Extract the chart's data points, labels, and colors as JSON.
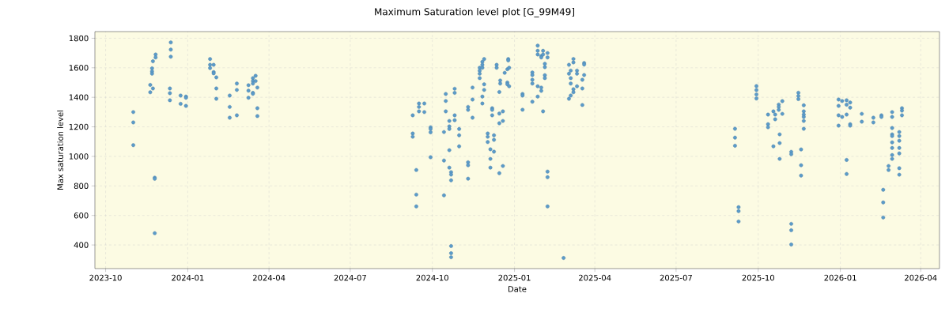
{
  "chart_data": {
    "type": "scatter",
    "title": "Maximum Saturation level plot [G_99M49]",
    "xlabel": "Date",
    "ylabel": "Max saturation level",
    "x": [
      "2023-11-01",
      "2023-11-01",
      "2023-11-01",
      "2023-11-20",
      "2023-11-20",
      "2023-11-22",
      "2023-11-22",
      "2023-11-22",
      "2023-11-23",
      "2023-11-23",
      "2023-11-25",
      "2023-11-25",
      "2023-11-25",
      "2023-11-26",
      "2023-11-26",
      "2023-12-12",
      "2023-12-12",
      "2023-12-12",
      "2023-12-13",
      "2023-12-13",
      "2023-12-13",
      "2023-12-24",
      "2023-12-24",
      "2023-12-30",
      "2023-12-30",
      "2023-12-30",
      "2024-01-26",
      "2024-01-26",
      "2024-01-26",
      "2024-01-30",
      "2024-01-30",
      "2024-01-30",
      "2024-02-02",
      "2024-02-02",
      "2024-02-02",
      "2024-02-17",
      "2024-02-17",
      "2024-02-17",
      "2024-02-25",
      "2024-02-25",
      "2024-02-25",
      "2024-03-09",
      "2024-03-09",
      "2024-03-09",
      "2024-03-14",
      "2024-03-14",
      "2024-03-14",
      "2024-03-14",
      "2024-03-14",
      "2024-03-17",
      "2024-03-17",
      "2024-03-19",
      "2024-03-19",
      "2024-03-19",
      "2024-09-09",
      "2024-09-09",
      "2024-09-09",
      "2024-09-13",
      "2024-09-13",
      "2024-09-13",
      "2024-09-16",
      "2024-09-16",
      "2024-09-16",
      "2024-09-22",
      "2024-09-22",
      "2024-09-29",
      "2024-09-29",
      "2024-09-29",
      "2024-09-29",
      "2024-10-14",
      "2024-10-14",
      "2024-10-14",
      "2024-10-16",
      "2024-10-16",
      "2024-10-16",
      "2024-10-20",
      "2024-10-20",
      "2024-10-20",
      "2024-10-20",
      "2024-10-20",
      "2024-10-22",
      "2024-10-22",
      "2024-10-22",
      "2024-10-22",
      "2024-10-22",
      "2024-10-22",
      "2024-10-26",
      "2024-10-26",
      "2024-10-26",
      "2024-10-26",
      "2024-10-31",
      "2024-10-31",
      "2024-10-31",
      "2024-11-10",
      "2024-11-10",
      "2024-11-10",
      "2024-11-10",
      "2024-11-10",
      "2024-11-15",
      "2024-11-15",
      "2024-11-15",
      "2024-11-23",
      "2024-11-23",
      "2024-11-23",
      "2024-11-23",
      "2024-11-26",
      "2024-11-26",
      "2024-11-26",
      "2024-11-26",
      "2024-11-26",
      "2024-11-28",
      "2024-11-28",
      "2024-11-28",
      "2024-12-02",
      "2024-12-02",
      "2024-12-02",
      "2024-12-05",
      "2024-12-05",
      "2024-12-05",
      "2024-12-07",
      "2024-12-07",
      "2024-12-07",
      "2024-12-09",
      "2024-12-09",
      "2024-12-09",
      "2024-12-12",
      "2024-12-12",
      "2024-12-15",
      "2024-12-15",
      "2024-12-15",
      "2024-12-15",
      "2024-12-16",
      "2024-12-16",
      "2024-12-19",
      "2024-12-19",
      "2024-12-19",
      "2024-12-21",
      "2024-12-24",
      "2024-12-24",
      "2024-12-24",
      "2024-12-25",
      "2024-12-25",
      "2024-12-26",
      "2024-12-26",
      "2025-01-10",
      "2025-01-10",
      "2025-01-10",
      "2025-01-21",
      "2025-01-21",
      "2025-01-21",
      "2025-01-21",
      "2025-01-21",
      "2025-01-27",
      "2025-01-27",
      "2025-01-27",
      "2025-01-27",
      "2025-01-27",
      "2025-01-31",
      "2025-01-31",
      "2025-01-31",
      "2025-01-31",
      "2025-02-02",
      "2025-02-02",
      "2025-02-02",
      "2025-02-04",
      "2025-02-04",
      "2025-02-04",
      "2025-02-04",
      "2025-02-07",
      "2025-02-07",
      "2025-02-07",
      "2025-02-07",
      "2025-02-07",
      "2025-02-25",
      "2025-03-03",
      "2025-03-03",
      "2025-03-03",
      "2025-03-05",
      "2025-03-05",
      "2025-03-05",
      "2025-03-05",
      "2025-03-08",
      "2025-03-08",
      "2025-03-08",
      "2025-03-08",
      "2025-03-12",
      "2025-03-12",
      "2025-03-12",
      "2025-03-18",
      "2025-03-18",
      "2025-03-18",
      "2025-03-20",
      "2025-03-20",
      "2025-03-20",
      "2025-09-05",
      "2025-09-05",
      "2025-09-05",
      "2025-09-09",
      "2025-09-09",
      "2025-09-09",
      "2025-09-29",
      "2025-09-29",
      "2025-09-29",
      "2025-09-29",
      "2025-10-12",
      "2025-10-12",
      "2025-10-12",
      "2025-10-18",
      "2025-10-18",
      "2025-10-20",
      "2025-10-20",
      "2025-10-24",
      "2025-10-24",
      "2025-10-24",
      "2025-10-25",
      "2025-10-25",
      "2025-10-25",
      "2025-10-28",
      "2025-10-28",
      "2025-11-07",
      "2025-11-07",
      "2025-11-07",
      "2025-11-07",
      "2025-11-07",
      "2025-11-15",
      "2025-11-15",
      "2025-11-15",
      "2025-11-18",
      "2025-11-18",
      "2025-11-18",
      "2025-11-21",
      "2025-11-21",
      "2025-11-21",
      "2025-11-21",
      "2025-11-21",
      "2025-11-21",
      "2025-12-30",
      "2025-12-30",
      "2025-12-30",
      "2025-12-30",
      "2026-01-03",
      "2026-01-03",
      "2026-01-08",
      "2026-01-08",
      "2026-01-08",
      "2026-01-08",
      "2026-01-08",
      "2026-01-12",
      "2026-01-12",
      "2026-01-12",
      "2026-01-12",
      "2026-01-25",
      "2026-01-25",
      "2026-02-07",
      "2026-02-07",
      "2026-02-16",
      "2026-02-16",
      "2026-02-18",
      "2026-02-18",
      "2026-02-18",
      "2026-02-24",
      "2026-02-24",
      "2026-02-28",
      "2026-02-28",
      "2026-02-28",
      "2026-02-28",
      "2026-02-28",
      "2026-02-28",
      "2026-02-28",
      "2026-02-28",
      "2026-02-28",
      "2026-03-08",
      "2026-03-08",
      "2026-03-08",
      "2026-03-08",
      "2026-03-08",
      "2026-03-08",
      "2026-03-08",
      "2026-03-11",
      "2026-03-11",
      "2026-03-11"
    ],
    "values": [
      1300,
      1230,
      1076,
      1484,
      1434,
      1596,
      1575,
      1560,
      1644,
      1460,
      856,
      848,
      480,
      1690,
      1670,
      1460,
      1428,
      1380,
      1772,
      1723,
      1675,
      1412,
      1356,
      1405,
      1397,
      1342,
      1659,
      1620,
      1598,
      1620,
      1571,
      1562,
      1535,
      1460,
      1390,
      1412,
      1335,
      1262,
      1493,
      1450,
      1278,
      1482,
      1445,
      1397,
      1530,
      1510,
      1493,
      1430,
      1424,
      1546,
      1510,
      1466,
      1326,
      1273,
      1278,
      1155,
      1133,
      908,
      741,
      661,
      1358,
      1335,
      1305,
      1358,
      1300,
      1197,
      1186,
      1163,
      994,
      1165,
      972,
      736,
      1423,
      1375,
      1305,
      1240,
      1203,
      1186,
      1042,
      924,
      893,
      877,
      838,
      393,
      344,
      317,
      1458,
      1430,
      1278,
      1245,
      1186,
      1143,
      1068,
      1335,
      1315,
      960,
      940,
      849,
      1466,
      1385,
      1262,
      1600,
      1580,
      1560,
      1530,
      1640,
      1620,
      1600,
      1405,
      1358,
      1659,
      1488,
      1450,
      1155,
      1133,
      1097,
      1048,
      983,
      924,
      1326,
      1315,
      1278,
      1143,
      1112,
      1032,
      1620,
      1600,
      1436,
      1290,
      1224,
      886,
      1514,
      1493,
      1305,
      1240,
      935,
      1566,
      1590,
      1500,
      1488,
      1659,
      1650,
      1600,
      1475,
      1423,
      1412,
      1316,
      1568,
      1551,
      1519,
      1493,
      1370,
      1750,
      1715,
      1690,
      1475,
      1405,
      1680,
      1670,
      1466,
      1444,
      1715,
      1690,
      1305,
      1627,
      1604,
      1550,
      1530,
      1700,
      1670,
      897,
      859,
      661,
      312,
      1620,
      1560,
      1390,
      1581,
      1530,
      1493,
      1412,
      1660,
      1636,
      1455,
      1434,
      1581,
      1560,
      1475,
      1519,
      1460,
      1348,
      1632,
      1622,
      1551,
      1187,
      1127,
      1072,
      656,
      629,
      559,
      1476,
      1449,
      1419,
      1392,
      1283,
      1218,
      1197,
      1305,
      1068,
      1283,
      1251,
      1351,
      1335,
      1315,
      1149,
      1090,
      983,
      1374,
      1288,
      1031,
      1015,
      543,
      500,
      403,
      1431,
      1409,
      1388,
      1047,
      940,
      870,
      1346,
      1305,
      1283,
      1267,
      1240,
      1187,
      1385,
      1342,
      1278,
      1208,
      1375,
      1267,
      1380,
      1350,
      1283,
      976,
      881,
      1365,
      1330,
      1218,
      1208,
      1288,
      1235,
      1262,
      1230,
      1278,
      1267,
      774,
      688,
      586,
      935,
      908,
      1300,
      1267,
      1192,
      1149,
      1138,
      1095,
      1057,
      1009,
      983,
      1165,
      1138,
      1106,
      1057,
      1020,
      920,
      876,
      1326,
      1310,
      1278
    ],
    "color": "#5b9bc9",
    "marker": "circle",
    "grid": true,
    "xlim": [
      "2023-09-19",
      "2026-04-22"
    ],
    "xticks": [
      "2023-10",
      "2024-01",
      "2024-04",
      "2024-07",
      "2024-10",
      "2025-01",
      "2025-04",
      "2025-07",
      "2025-10",
      "2026-01",
      "2026-04"
    ],
    "ylim": [
      240,
      1845
    ],
    "yticks": [
      400,
      600,
      800,
      1000,
      1200,
      1400,
      1600,
      1800
    ]
  }
}
